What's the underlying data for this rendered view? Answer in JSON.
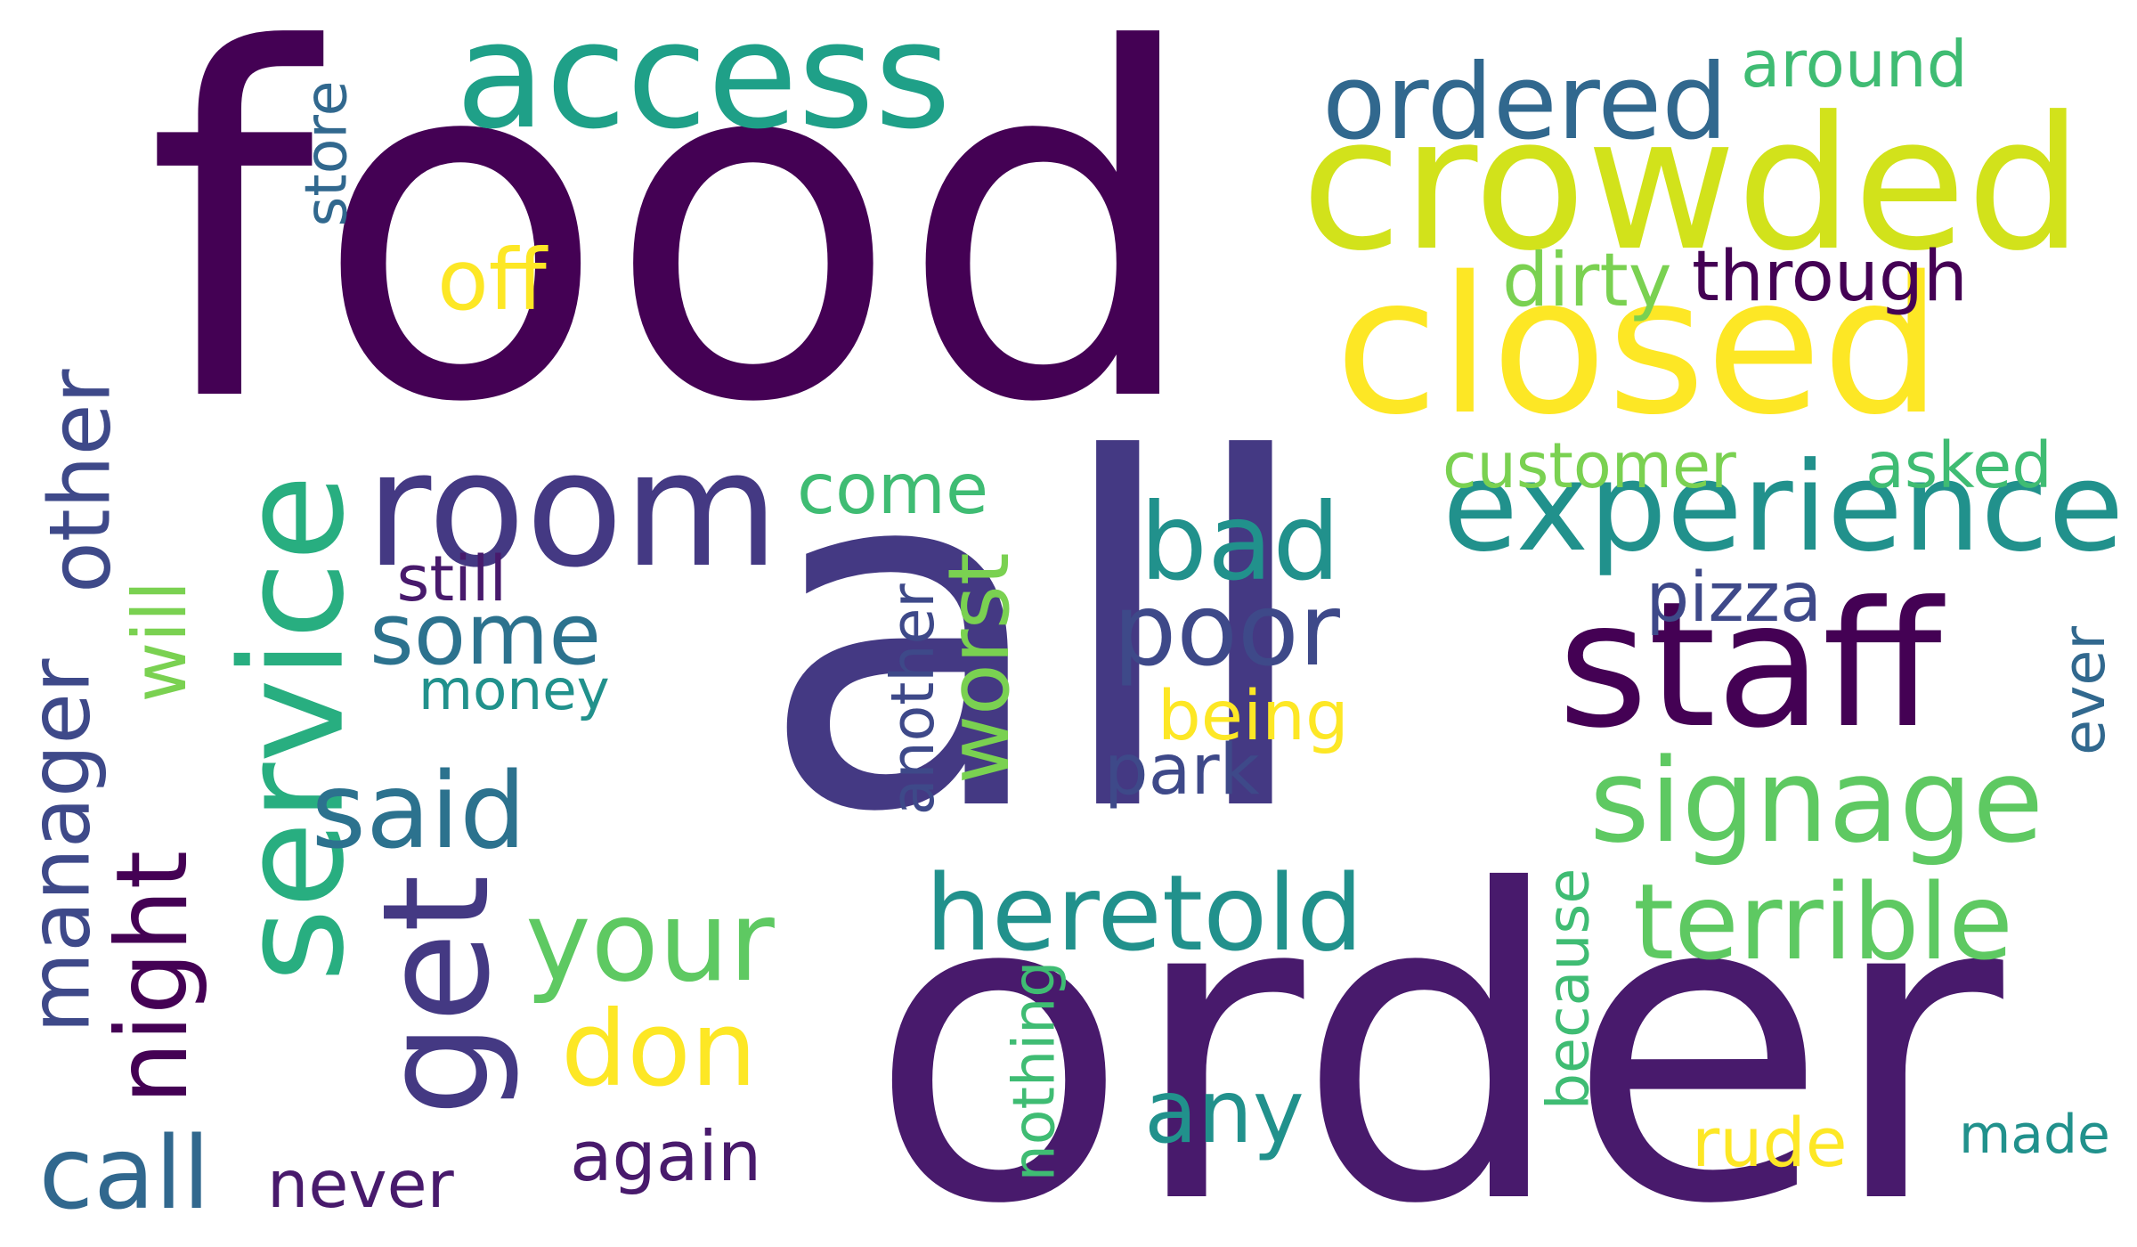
{
  "palette": {
    "dark_purple": "#440154",
    "purple": "#481a6c",
    "indigo": "#443983",
    "slate_blue": "#3e4989",
    "steel_blue": "#31688e",
    "blue_teal": "#2c728e",
    "teal": "#21918c",
    "sea_green": "#1fa088",
    "green_teal": "#28ae80",
    "green": "#3fbc73",
    "light_green": "#5ec962",
    "lime": "#7ad151",
    "yellow_green": "#bddf26",
    "lime_yellow": "#d2e21b",
    "yellow": "#fde725"
  },
  "words": [
    {
      "text": "food",
      "color": "dark_purple"
    },
    {
      "text": "all",
      "color": "indigo"
    },
    {
      "text": "order",
      "color": "purple"
    },
    {
      "text": "service",
      "color": "green_teal"
    },
    {
      "text": "access",
      "color": "sea_green"
    },
    {
      "text": "crowded",
      "color": "lime_yellow"
    },
    {
      "text": "closed",
      "color": "yellow"
    },
    {
      "text": "room",
      "color": "indigo"
    },
    {
      "text": "staff",
      "color": "dark_purple"
    },
    {
      "text": "experience",
      "color": "teal"
    },
    {
      "text": "get",
      "color": "indigo"
    },
    {
      "text": "ordered",
      "color": "steel_blue"
    },
    {
      "text": "bad",
      "color": "teal"
    },
    {
      "text": "signage",
      "color": "light_green"
    },
    {
      "text": "terrible",
      "color": "light_green"
    },
    {
      "text": "heretold",
      "color": "teal"
    },
    {
      "text": "your",
      "color": "light_green"
    },
    {
      "text": "poor",
      "color": "slate_blue"
    },
    {
      "text": "some",
      "color": "blue_teal"
    },
    {
      "text": "said",
      "color": "blue_teal"
    },
    {
      "text": "manager",
      "color": "slate_blue"
    },
    {
      "text": "other",
      "color": "slate_blue"
    },
    {
      "text": "night",
      "color": "dark_purple"
    },
    {
      "text": "will",
      "color": "lime"
    },
    {
      "text": "worst",
      "color": "lime"
    },
    {
      "text": "don",
      "color": "yellow"
    },
    {
      "text": "any",
      "color": "teal"
    },
    {
      "text": "call",
      "color": "steel_blue"
    },
    {
      "text": "around",
      "color": "green"
    },
    {
      "text": "through",
      "color": "dark_purple"
    },
    {
      "text": "dirty",
      "color": "lime"
    },
    {
      "text": "customer",
      "color": "lime"
    },
    {
      "text": "asked",
      "color": "green"
    },
    {
      "text": "pizza",
      "color": "slate_blue"
    },
    {
      "text": "come",
      "color": "green"
    },
    {
      "text": "still",
      "color": "purple"
    },
    {
      "text": "money",
      "color": "teal"
    },
    {
      "text": "being",
      "color": "yellow"
    },
    {
      "text": "park",
      "color": "slate_blue"
    },
    {
      "text": "store",
      "color": "steel_blue"
    },
    {
      "text": "off",
      "color": "yellow"
    },
    {
      "text": "another",
      "color": "slate_blue"
    },
    {
      "text": "ever",
      "color": "steel_blue"
    },
    {
      "text": "because",
      "color": "green"
    },
    {
      "text": "nothing",
      "color": "green"
    },
    {
      "text": "again",
      "color": "purple"
    },
    {
      "text": "never",
      "color": "purple"
    },
    {
      "text": "rude",
      "color": "yellow"
    },
    {
      "text": "made",
      "color": "teal"
    }
  ]
}
